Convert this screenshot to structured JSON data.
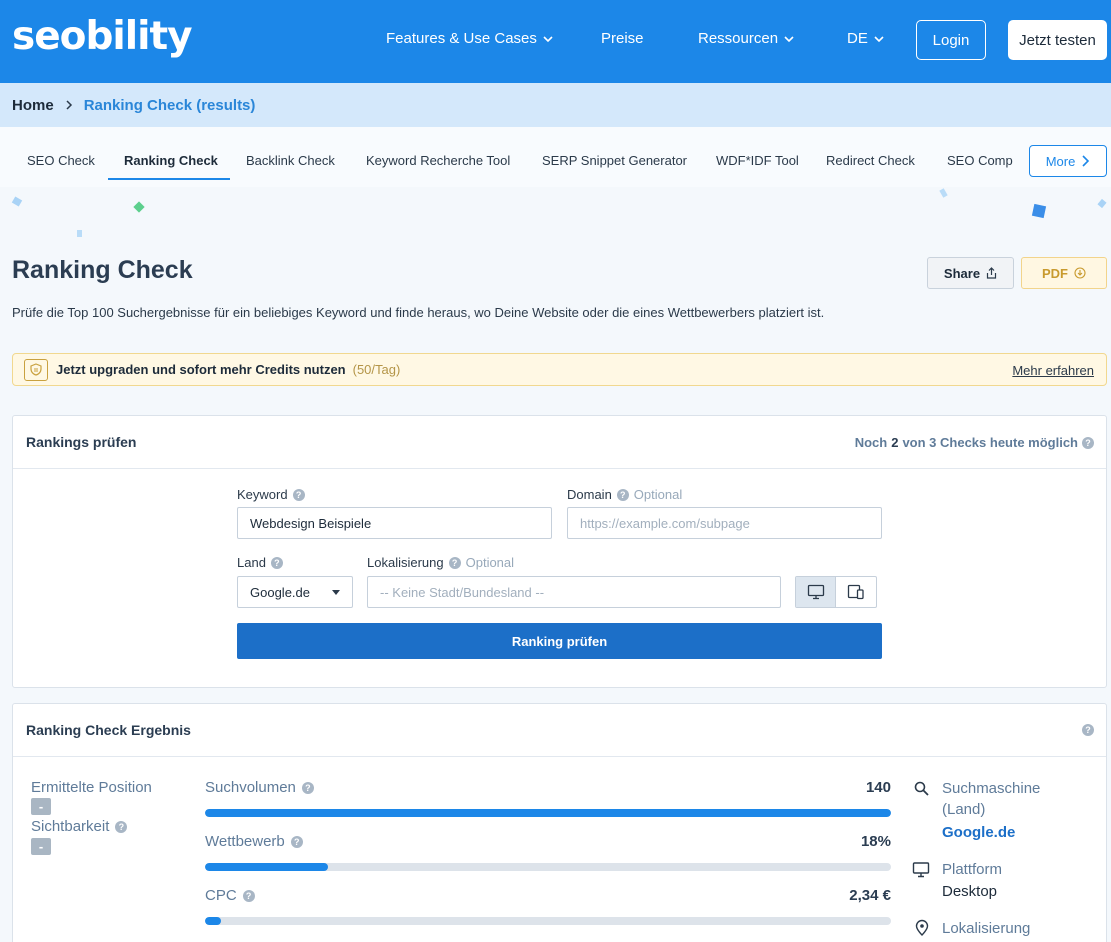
{
  "header": {
    "logo": "seobility",
    "nav": [
      "Features & Use Cases",
      "Preise",
      "Ressourcen",
      "DE"
    ],
    "login": "Login",
    "cta": "Jetzt testen"
  },
  "breadcrumb": {
    "home": "Home",
    "current": "Ranking Check (results)"
  },
  "tools": {
    "items": [
      "SEO Check",
      "Ranking Check",
      "Backlink Check",
      "Keyword Recherche Tool",
      "SERP Snippet Generator",
      "WDF*IDF Tool",
      "Redirect Check",
      "SEO Comp"
    ],
    "active": "Ranking Check",
    "more": "More"
  },
  "page": {
    "title": "Ranking Check",
    "share": "Share",
    "pdf": "PDF",
    "intro": "Prüfe die Top 100 Suchergebnisse für ein beliebiges Keyword und finde heraus, wo Deine Website oder die eines Wettbewerbers platziert ist."
  },
  "upgrade": {
    "text": "Jetzt upgraden und sofort mehr Credits nutzen",
    "credits": "(50/Tag)",
    "link": "Mehr erfahren"
  },
  "form": {
    "title": "Rankings prüfen",
    "checks_pre": "Noch",
    "checks_num": "2",
    "checks_post": "von 3 Checks heute möglich",
    "keyword_label": "Keyword",
    "keyword_value": "Webdesign Beispiele",
    "domain_label": "Domain",
    "optional": "Optional",
    "domain_placeholder": "https://example.com/subpage",
    "country_label": "Land",
    "country_value": "Google.de",
    "locale_label": "Lokalisierung",
    "locale_placeholder": "-- Keine Stadt/Bundesland --",
    "submit": "Ranking prüfen"
  },
  "result": {
    "title": "Ranking Check Ergebnis",
    "position_label": "Ermittelte Position",
    "position_value": "-",
    "visibility_label": "Sichtbarkeit",
    "visibility_value": "-",
    "metrics": [
      {
        "label": "Suchvolumen",
        "value": "140",
        "fill": 1.0
      },
      {
        "label": "Wettbewerb",
        "value": "18%",
        "fill": 0.18
      },
      {
        "label": "CPC",
        "value": "2,34 €",
        "fill": 0.023
      }
    ],
    "engine_label": "Suchmaschine (Land)",
    "engine_value": "Google.de",
    "platform_label": "Plattform",
    "platform_value": "Desktop",
    "locale_label": "Lokalisierung"
  },
  "colors": {
    "brand": "#1c87e8",
    "button": "#1c6fc8",
    "warning_bg": "#fff8e4"
  }
}
